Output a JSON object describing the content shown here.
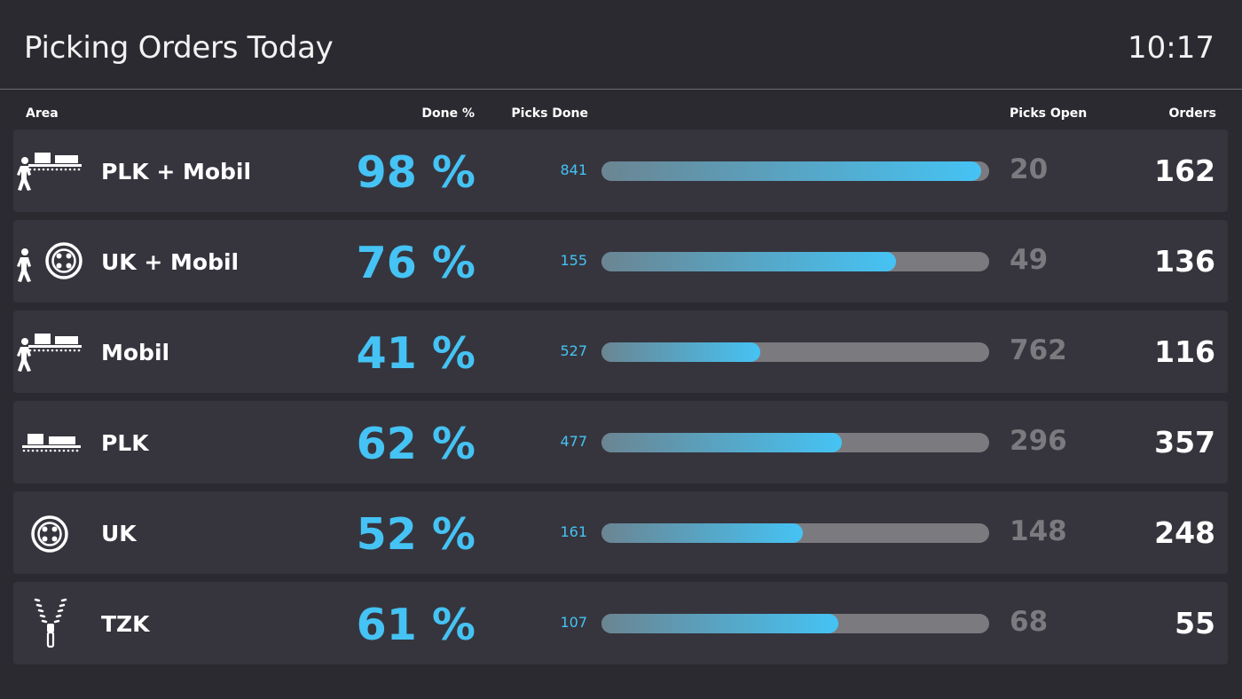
{
  "header": {
    "title": "Picking Orders Today",
    "clock": "10:17"
  },
  "columns": {
    "area": "Area",
    "done_pct": "Done %",
    "picks_done": "Picks Done",
    "picks_open": "Picks Open",
    "orders": "Orders"
  },
  "rows": [
    {
      "icon": "worker-conveyor-icon",
      "area": "PLK + Mobil",
      "done_pct": "98 %",
      "progress": 0.98,
      "picks_done": "841",
      "picks_open": "20",
      "orders": "162"
    },
    {
      "icon": "worker-button-icon",
      "area": "UK + Mobil",
      "done_pct": "76 %",
      "progress": 0.76,
      "picks_done": "155",
      "picks_open": "49",
      "orders": "136"
    },
    {
      "icon": "worker-conveyor-icon",
      "area": "Mobil",
      "done_pct": "41 %",
      "progress": 0.41,
      "picks_done": "527",
      "picks_open": "762",
      "orders": "116"
    },
    {
      "icon": "conveyor-icon",
      "area": "PLK",
      "done_pct": "62 %",
      "progress": 0.62,
      "picks_done": "477",
      "picks_open": "296",
      "orders": "357"
    },
    {
      "icon": "button-icon",
      "area": "UK",
      "done_pct": "52 %",
      "progress": 0.52,
      "picks_done": "161",
      "picks_open": "148",
      "orders": "248"
    },
    {
      "icon": "zipper-icon",
      "area": "TZK",
      "done_pct": "61 %",
      "progress": 0.61,
      "picks_done": "107",
      "picks_open": "68",
      "orders": "55"
    }
  ],
  "colors": {
    "accent": "#45c3f4",
    "muted": "#7b7a7f",
    "background": "#2b2a30",
    "row": "#36353e"
  }
}
